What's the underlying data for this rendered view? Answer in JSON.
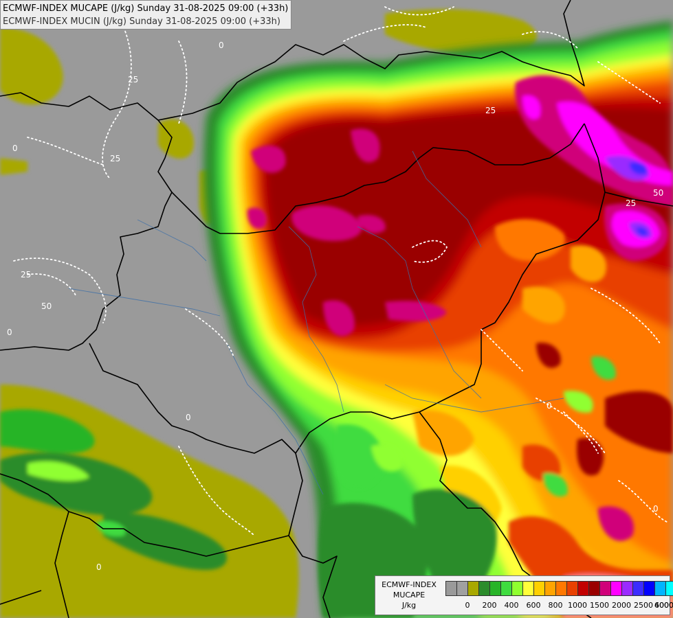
{
  "header": {
    "line1": "ECMWF-INDEX MUCAPE (J/kg) Sunday 31-08-2025 09:00 (+33h)",
    "line2": "ECMWF-INDEX MUCIN (J/kg) Sunday 31-08-2025 09:00 (+33h)"
  },
  "legend": {
    "title": "ECMWF-INDEX",
    "variable": "MUCAPE",
    "unit": "J/kg",
    "colors": [
      "#9a9a9a",
      "#a0a0a0",
      "#a8a800",
      "#2c8c2c",
      "#28b428",
      "#40dc40",
      "#90ff30",
      "#ffff3a",
      "#ffd000",
      "#ffa400",
      "#ff7800",
      "#e84000",
      "#c20000",
      "#9a0000",
      "#d0007a",
      "#ff00ff",
      "#9a2bff",
      "#3c2cff",
      "#0000ff",
      "#00b4ff",
      "#00ffff",
      "#ffffff"
    ],
    "ticks": [
      "0",
      "200",
      "400",
      "600",
      "800",
      "1000",
      "1500",
      "2000",
      "2500",
      "4000",
      "6000"
    ]
  },
  "map": {
    "contour_labels": [
      "0",
      "25",
      "0",
      "25",
      "25",
      "50",
      "0",
      "0",
      "0",
      "25",
      "25",
      "50",
      "0",
      "0"
    ]
  }
}
